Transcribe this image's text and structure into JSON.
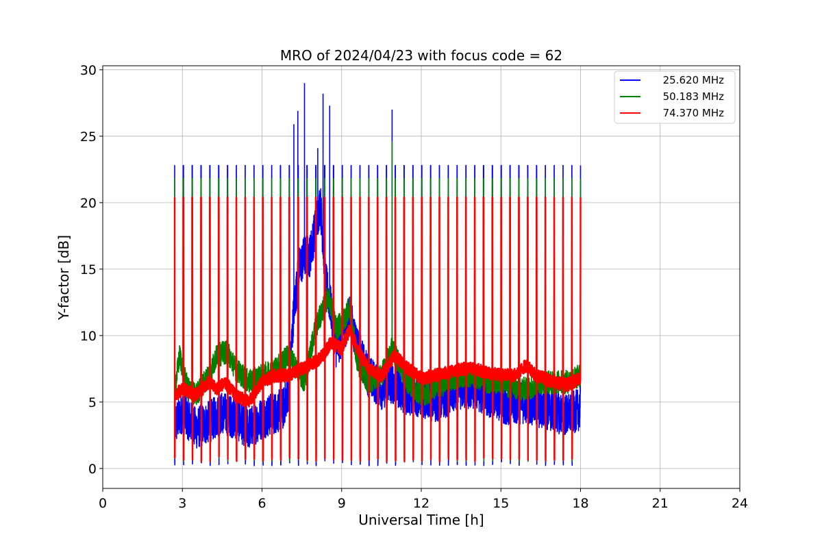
{
  "chart_data": {
    "type": "line",
    "title": "MRO of 2024/04/23 with focus code = 62",
    "xlabel": "Universal Time [h]",
    "ylabel": "Y-factor [dB]",
    "xlim": [
      0,
      24
    ],
    "ylim": [
      -1.5,
      30.3
    ],
    "xticks": [
      0,
      3,
      6,
      9,
      12,
      15,
      18,
      21,
      24
    ],
    "yticks": [
      0,
      5,
      10,
      15,
      20,
      25,
      30
    ],
    "grid": true,
    "legend_position": "top-right",
    "data_range_x": [
      2.7,
      18.0
    ],
    "series": [
      {
        "name": "25.620 MHz",
        "color": "#0000ff",
        "x": [
          2.7,
          3.0,
          3.5,
          4.0,
          4.5,
          5.0,
          5.5,
          6.0,
          6.5,
          6.8,
          7.0,
          7.2,
          7.4,
          7.6,
          7.8,
          8.0,
          8.2,
          8.4,
          8.6,
          8.8,
          9.0,
          9.3,
          9.6,
          10.0,
          10.5,
          10.9,
          11.5,
          12.0,
          12.5,
          13.0,
          13.5,
          14.0,
          14.5,
          15.0,
          15.5,
          16.0,
          16.5,
          17.0,
          17.5,
          18.0
        ],
        "values": [
          3.2,
          4.3,
          3.0,
          3.5,
          4.2,
          3.8,
          3.0,
          3.8,
          4.2,
          4.5,
          6.0,
          12.0,
          15.0,
          16.0,
          16.0,
          18.0,
          20.0,
          14.0,
          12.0,
          9.0,
          10.0,
          11.5,
          9.0,
          7.0,
          6.0,
          6.5,
          5.5,
          5.5,
          5.0,
          5.5,
          6.0,
          6.0,
          5.5,
          5.0,
          4.8,
          5.0,
          4.5,
          4.3,
          4.0,
          4.5
        ],
        "spike_peak": 22.8,
        "burst_peaks": [
          {
            "x": 7.2,
            "y": 25.9
          },
          {
            "x": 7.35,
            "y": 26.9
          },
          {
            "x": 7.6,
            "y": 29.0
          },
          {
            "x": 8.1,
            "y": 24.1
          },
          {
            "x": 8.3,
            "y": 28.2
          },
          {
            "x": 8.55,
            "y": 27.3
          },
          {
            "x": 10.9,
            "y": 27.0
          }
        ]
      },
      {
        "name": "50.183 MHz",
        "color": "#008000",
        "x": [
          2.7,
          2.9,
          3.2,
          3.5,
          4.0,
          4.3,
          4.7,
          5.0,
          5.5,
          6.0,
          6.5,
          7.0,
          7.3,
          7.6,
          8.0,
          8.3,
          8.5,
          8.8,
          9.0,
          9.3,
          9.6,
          10.0,
          10.5,
          10.9,
          11.5,
          12.0,
          12.5,
          13.0,
          13.5,
          14.0,
          14.5,
          15.0,
          15.5,
          16.0,
          16.5,
          17.0,
          17.5,
          18.0
        ],
        "values": [
          5.8,
          8.5,
          6.0,
          5.5,
          7.0,
          8.5,
          8.8,
          7.5,
          6.5,
          7.0,
          7.5,
          8.5,
          7.5,
          6.5,
          10.5,
          12.0,
          13.0,
          10.5,
          11.0,
          12.0,
          8.0,
          6.5,
          7.0,
          9.0,
          6.5,
          5.5,
          6.0,
          6.5,
          7.0,
          7.0,
          6.5,
          6.5,
          6.0,
          6.0,
          6.5,
          6.5,
          6.5,
          7.0
        ],
        "spike_peak": 21.8,
        "burst_peaks": [
          {
            "x": 10.9,
            "y": 24.6
          }
        ]
      },
      {
        "name": "74.370 MHz",
        "color": "#ff0000",
        "x": [
          2.7,
          3.0,
          3.5,
          4.0,
          4.3,
          4.6,
          5.0,
          5.5,
          6.0,
          6.5,
          7.0,
          7.5,
          8.0,
          8.3,
          8.6,
          9.0,
          9.3,
          9.6,
          10.0,
          10.5,
          11.0,
          11.5,
          12.0,
          12.5,
          13.0,
          13.5,
          14.0,
          14.5,
          15.0,
          15.5,
          15.8,
          16.0,
          16.3,
          16.6,
          17.0,
          17.5,
          18.0
        ],
        "values": [
          5.5,
          6.0,
          5.5,
          6.5,
          6.0,
          6.5,
          5.5,
          5.0,
          6.5,
          7.0,
          7.0,
          7.5,
          8.0,
          8.5,
          9.5,
          9.0,
          10.5,
          9.0,
          7.5,
          7.0,
          8.5,
          7.5,
          6.8,
          7.0,
          7.2,
          7.5,
          7.5,
          7.2,
          7.0,
          7.0,
          7.5,
          7.8,
          7.0,
          6.8,
          6.5,
          6.3,
          6.8
        ],
        "spike_peak": 20.4
      }
    ]
  }
}
